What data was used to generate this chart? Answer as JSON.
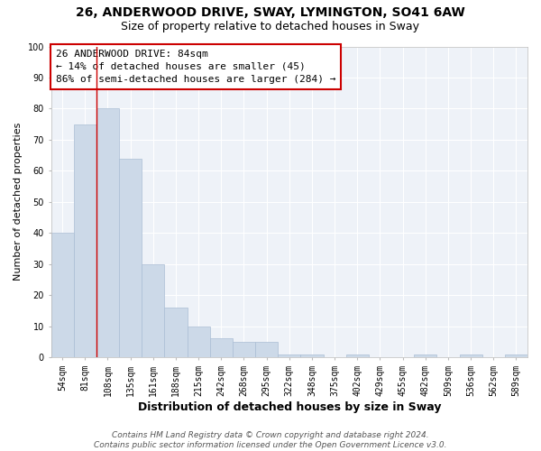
{
  "title1": "26, ANDERWOOD DRIVE, SWAY, LYMINGTON, SO41 6AW",
  "title2": "Size of property relative to detached houses in Sway",
  "xlabel": "Distribution of detached houses by size in Sway",
  "ylabel": "Number of detached properties",
  "categories": [
    "54sqm",
    "81sqm",
    "108sqm",
    "135sqm",
    "161sqm",
    "188sqm",
    "215sqm",
    "242sqm",
    "268sqm",
    "295sqm",
    "322sqm",
    "348sqm",
    "375sqm",
    "402sqm",
    "429sqm",
    "455sqm",
    "482sqm",
    "509sqm",
    "536sqm",
    "562sqm",
    "589sqm"
  ],
  "values": [
    40,
    75,
    80,
    64,
    30,
    16,
    10,
    6,
    5,
    5,
    1,
    1,
    0,
    1,
    0,
    0,
    1,
    0,
    1,
    0,
    1
  ],
  "bar_color": "#ccd9e8",
  "bar_edge_color": "#aabdd4",
  "vline_x": 1,
  "vline_color": "#cc0000",
  "annotation_text": "26 ANDERWOOD DRIVE: 84sqm\n← 14% of detached houses are smaller (45)\n86% of semi-detached houses are larger (284) →",
  "annotation_box_facecolor": "#ffffff",
  "annotation_box_edgecolor": "#cc0000",
  "ylim": [
    0,
    100
  ],
  "yticks": [
    0,
    10,
    20,
    30,
    40,
    50,
    60,
    70,
    80,
    90,
    100
  ],
  "footer": "Contains HM Land Registry data © Crown copyright and database right 2024.\nContains public sector information licensed under the Open Government Licence v3.0.",
  "bg_color": "#ffffff",
  "plot_bg_color": "#eef2f8",
  "grid_color": "#ffffff",
  "title1_fontsize": 10,
  "title2_fontsize": 9,
  "xlabel_fontsize": 9,
  "ylabel_fontsize": 8,
  "tick_fontsize": 7,
  "annotation_fontsize": 8,
  "footer_fontsize": 6.5
}
